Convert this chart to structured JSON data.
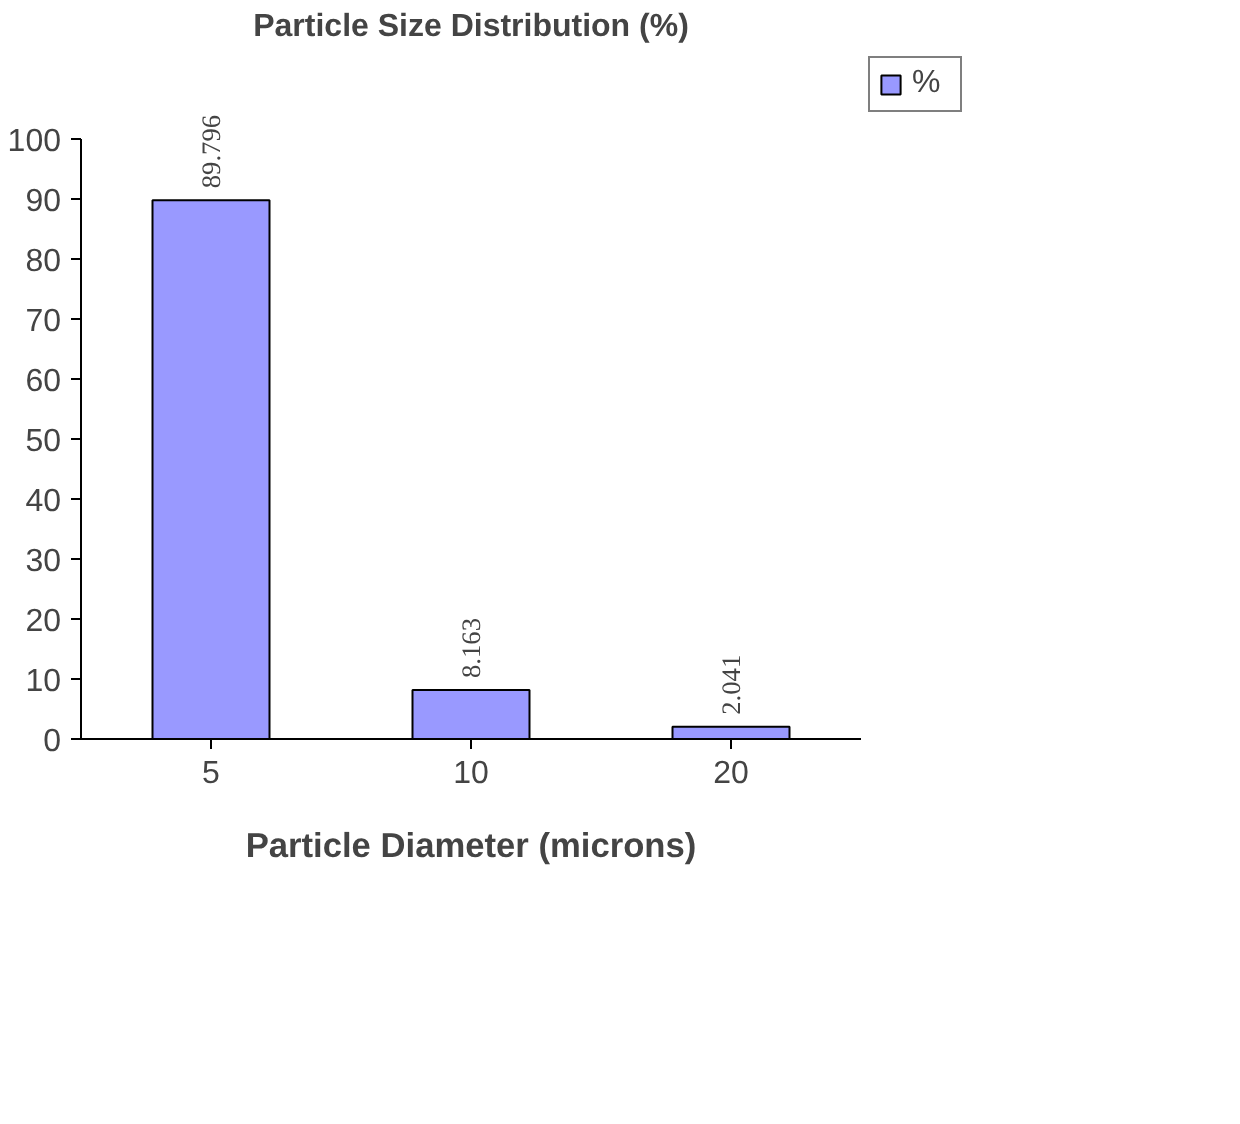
{
  "chart_data": {
    "type": "bar",
    "title": "Particle Size Distribution (%)",
    "xlabel": "Particle Diameter (microns)",
    "categories": [
      "5",
      "10",
      "20"
    ],
    "series": [
      {
        "name": "%",
        "color": "#9999ff",
        "values": [
          89.796,
          8.163,
          2.041
        ]
      }
    ],
    "ylim": [
      0,
      100
    ],
    "yticks": [
      0,
      10,
      20,
      30,
      40,
      50,
      60,
      70,
      80,
      90,
      100
    ],
    "data_labels": true,
    "grid": false,
    "legend": "top right"
  }
}
